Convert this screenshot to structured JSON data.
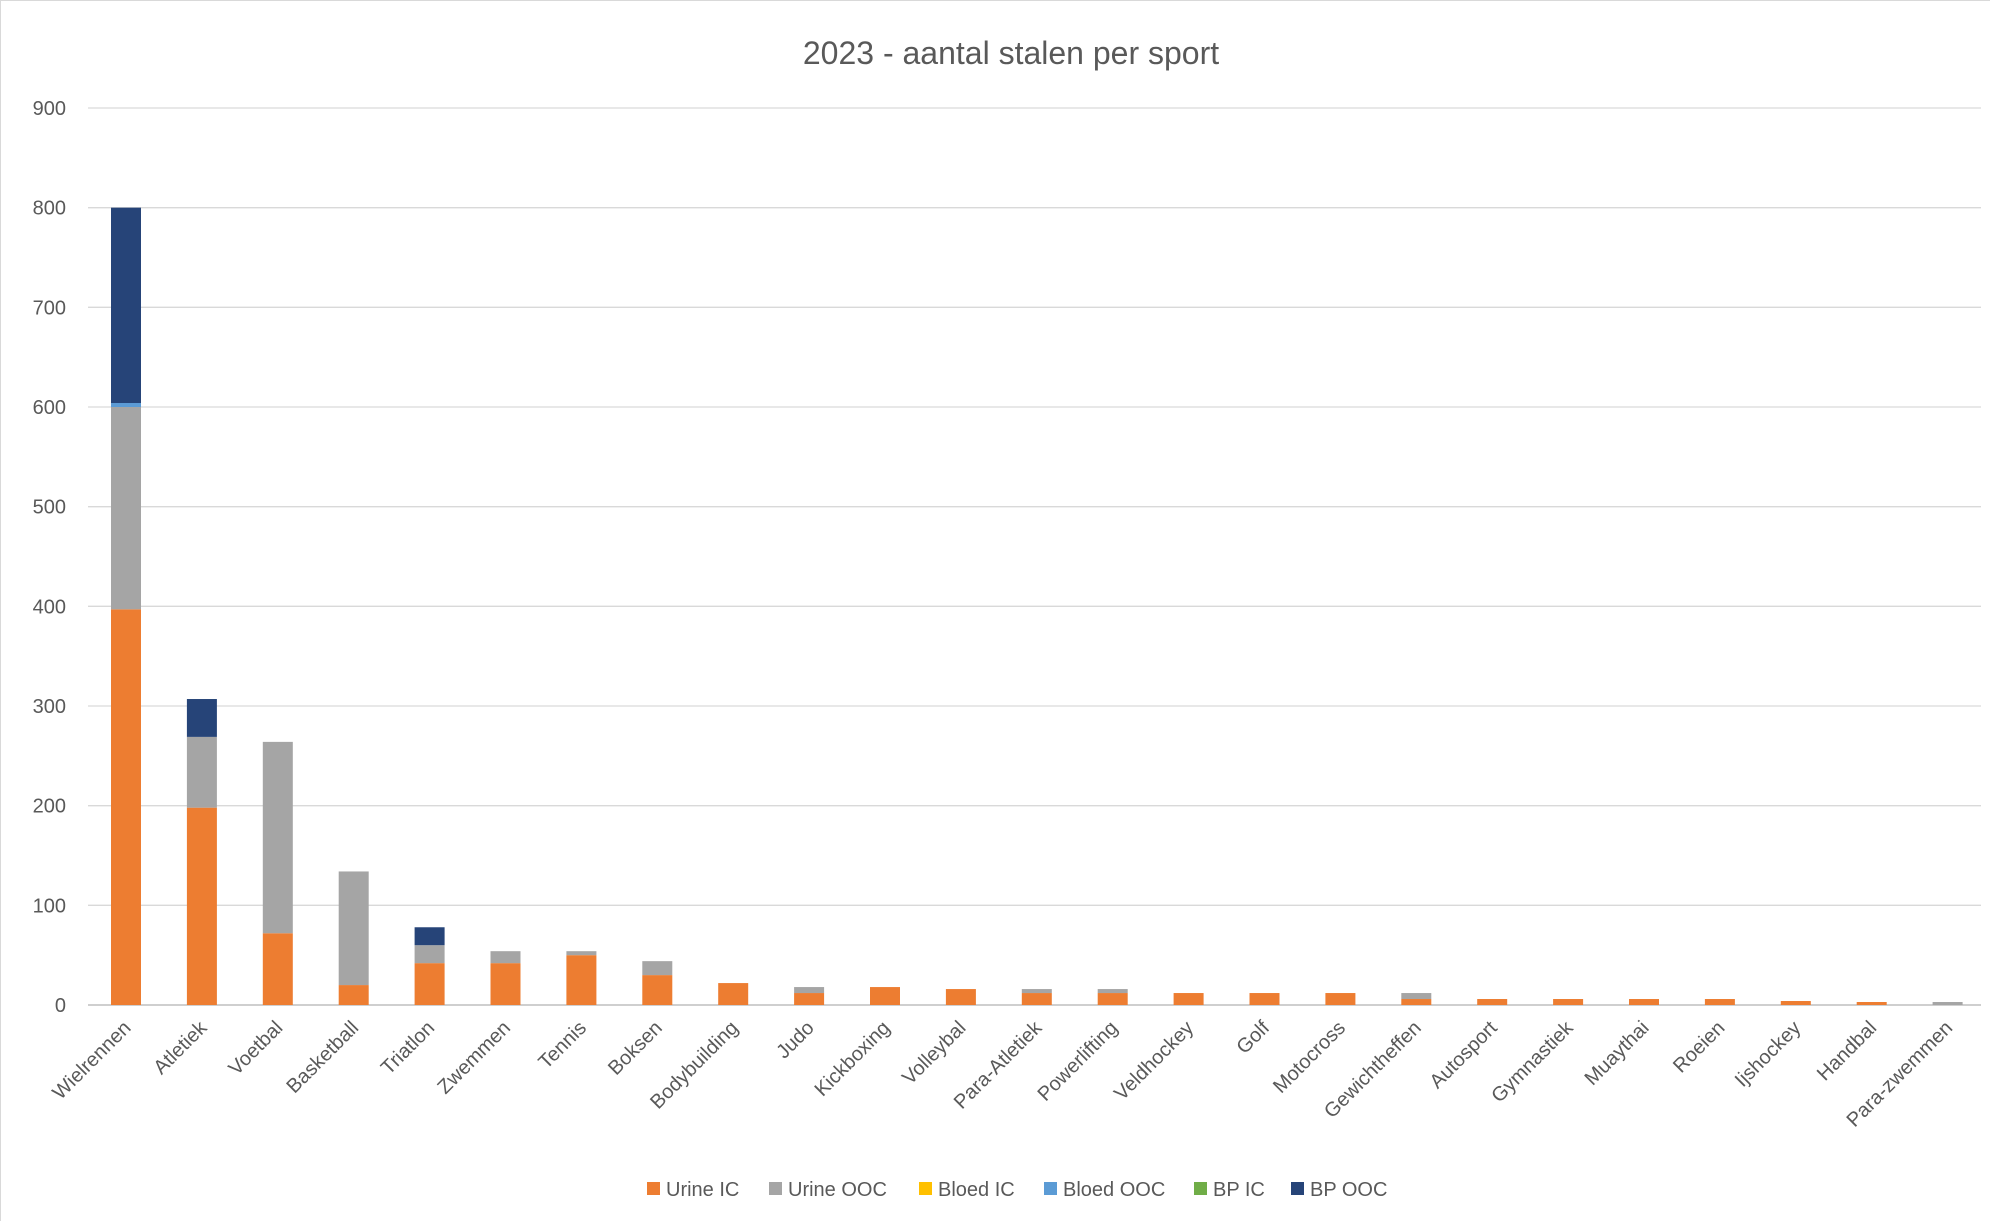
{
  "chart_data": {
    "type": "bar",
    "stacked": true,
    "title": "2023 - aantal stalen per sport",
    "xlabel": "",
    "ylabel": "",
    "ylim": [
      0,
      900
    ],
    "y_ticks": [
      0,
      100,
      200,
      300,
      400,
      500,
      600,
      700,
      800,
      900
    ],
    "grid": true,
    "legend_position": "bottom",
    "categories": [
      "Wielrennen",
      "Atletiek",
      "Voetbal",
      "Basketball",
      "Triatlon",
      "Zwemmen",
      "Tennis",
      "Boksen",
      "Bodybuilding",
      "Judo",
      "Kickboxing",
      "Volleybal",
      "Para-Atletiek",
      "Powerlifting",
      "Veldhockey",
      "Golf",
      "Motocross",
      "Gewichtheffen",
      "Autosport",
      "Gymnastiek",
      "Muaythai",
      "Roeien",
      "Ijshockey",
      "Handbal",
      "Para-zwemmen"
    ],
    "series": [
      {
        "name": "Urine IC",
        "color": "#ed7d31",
        "values": [
          397,
          198,
          72,
          20,
          42,
          42,
          50,
          30,
          22,
          12,
          18,
          16,
          12,
          12,
          12,
          12,
          12,
          6,
          6,
          6,
          6,
          6,
          4,
          3,
          0
        ]
      },
      {
        "name": "Urine OOC",
        "color": "#a5a5a5",
        "values": [
          203,
          71,
          192,
          114,
          18,
          12,
          4,
          14,
          0,
          6,
          0,
          0,
          4,
          4,
          0,
          0,
          0,
          6,
          0,
          0,
          0,
          0,
          0,
          0,
          3
        ]
      },
      {
        "name": "Bloed IC",
        "color": "#ffc000",
        "values": [
          0,
          0,
          0,
          0,
          0,
          0,
          0,
          0,
          0,
          0,
          0,
          0,
          0,
          0,
          0,
          0,
          0,
          0,
          0,
          0,
          0,
          0,
          0,
          0,
          0
        ]
      },
      {
        "name": "Bloed OOC",
        "color": "#5b9bd5",
        "values": [
          4,
          0,
          0,
          0,
          0,
          0,
          0,
          0,
          0,
          0,
          0,
          0,
          0,
          0,
          0,
          0,
          0,
          0,
          0,
          0,
          0,
          0,
          0,
          0,
          0
        ]
      },
      {
        "name": "BP IC",
        "color": "#70ad47",
        "values": [
          0,
          0,
          0,
          0,
          0,
          0,
          0,
          0,
          0,
          0,
          0,
          0,
          0,
          0,
          0,
          0,
          0,
          0,
          0,
          0,
          0,
          0,
          0,
          0,
          0
        ]
      },
      {
        "name": "BP OOC",
        "color": "#264478",
        "values": [
          196,
          38,
          0,
          0,
          18,
          0,
          0,
          0,
          0,
          0,
          0,
          0,
          0,
          0,
          0,
          0,
          0,
          0,
          0,
          0,
          0,
          0,
          0,
          0,
          0
        ]
      }
    ]
  }
}
